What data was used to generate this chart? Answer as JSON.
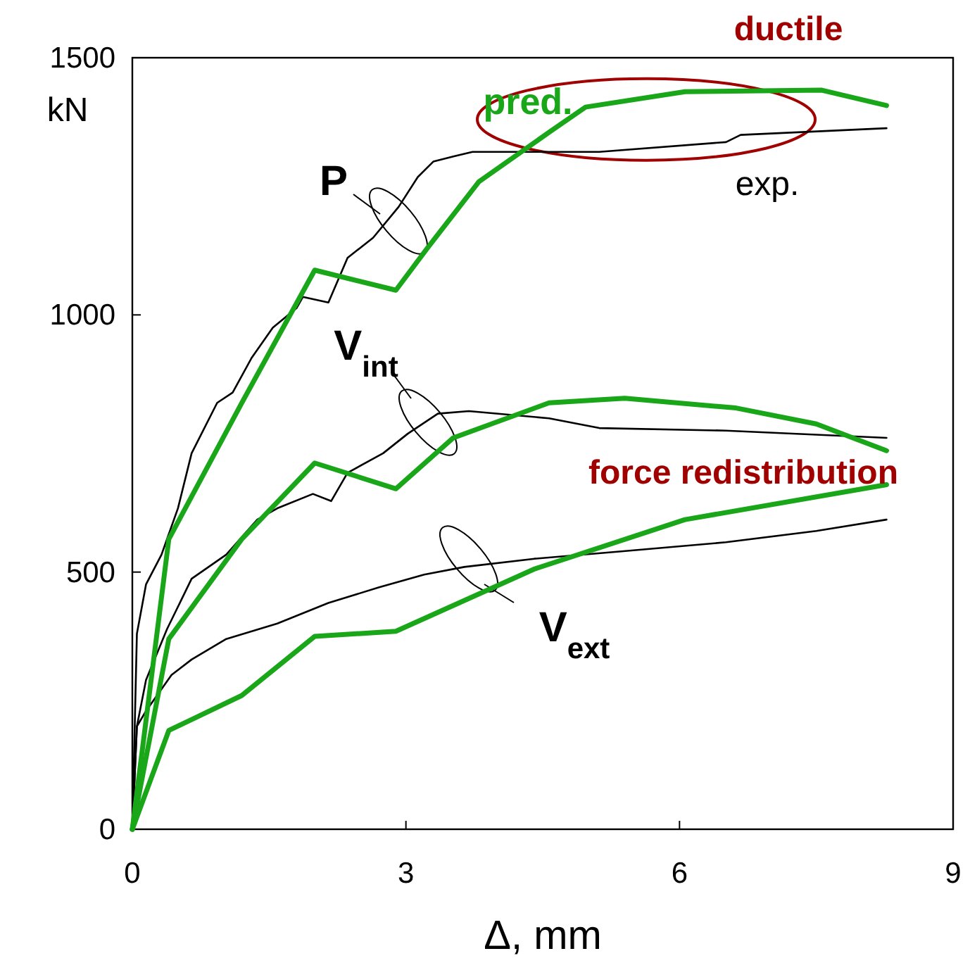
{
  "chart_data": {
    "type": "line",
    "xlabel": "Δ, mm",
    "ylabel": "kN",
    "xlim": [
      0,
      9
    ],
    "ylim": [
      0,
      1500
    ],
    "xticks": [
      0,
      3,
      6,
      9
    ],
    "yticks": [
      0,
      500,
      1000,
      1500
    ],
    "grid": false,
    "line_style": "solid",
    "series": [
      {
        "color": "#000000",
        "x": [
          0,
          0.05,
          0.15,
          0.32,
          0.5,
          0.65,
          0.93,
          1.1,
          1.31,
          1.54,
          1.8,
          1.87,
          2.15,
          2.36,
          2.64,
          2.92,
          3.13,
          3.3,
          3.52,
          3.73,
          5.12,
          6.51,
          6.67,
          8.27
        ],
        "values": [
          0,
          380,
          476,
          534,
          624,
          731,
          829,
          849,
          917,
          975,
          1013,
          1035,
          1024,
          1111,
          1150,
          1210,
          1268,
          1298,
          1308,
          1317,
          1317,
          1336,
          1350,
          1363
        ]
      },
      {
        "color": "#000000",
        "x": [
          0,
          0.05,
          0.15,
          0.38,
          0.65,
          1.03,
          1.37,
          1.59,
          1.98,
          2.18,
          2.36,
          2.75,
          3.02,
          3.35,
          3.69,
          4.57,
          5.12,
          6.51,
          8.27
        ],
        "values": [
          0,
          200,
          290,
          389,
          487,
          534,
          602,
          624,
          652,
          638,
          693,
          731,
          769,
          808,
          813,
          799,
          780,
          775,
          761
        ]
      },
      {
        "color": "#000000",
        "x": [
          0,
          0.05,
          0.15,
          0.43,
          0.65,
          1.03,
          1.59,
          2.15,
          2.7,
          3.2,
          3.64,
          4.41,
          5.34,
          6.51,
          7.5,
          8.27
        ],
        "values": [
          0,
          200,
          230,
          300,
          330,
          370,
          400,
          440,
          470,
          495,
          510,
          526,
          540,
          558,
          580,
          602
        ]
      },
      {
        "color": "#19a619",
        "x": [
          0,
          0.4,
          1.2,
          2.0,
          2.89,
          3.24,
          3.8,
          4.57,
          4.97,
          6.06,
          7.56,
          8.27
        ],
        "values": [
          0,
          564,
          829,
          1087,
          1048,
          1131,
          1259,
          1355,
          1404,
          1434,
          1437,
          1407
        ]
      },
      {
        "color": "#19a619",
        "x": [
          0,
          0.4,
          1.2,
          2.0,
          2.89,
          3.52,
          4.57,
          5.4,
          6.62,
          7.5,
          8.27
        ],
        "values": [
          0,
          370,
          564,
          712,
          662,
          761,
          829,
          838,
          819,
          788,
          736
        ]
      },
      {
        "color": "#19a619",
        "x": [
          0,
          0.4,
          1.2,
          2.0,
          2.89,
          4.41,
          6.06,
          8.27
        ],
        "values": [
          0,
          192,
          260,
          375,
          385,
          506,
          602,
          670
        ]
      }
    ],
    "annotations": [
      "P",
      "V$_{int}$",
      "V$_{ext}$",
      "pred.",
      "exp.",
      "ductile",
      "force redistribution"
    ]
  }
}
